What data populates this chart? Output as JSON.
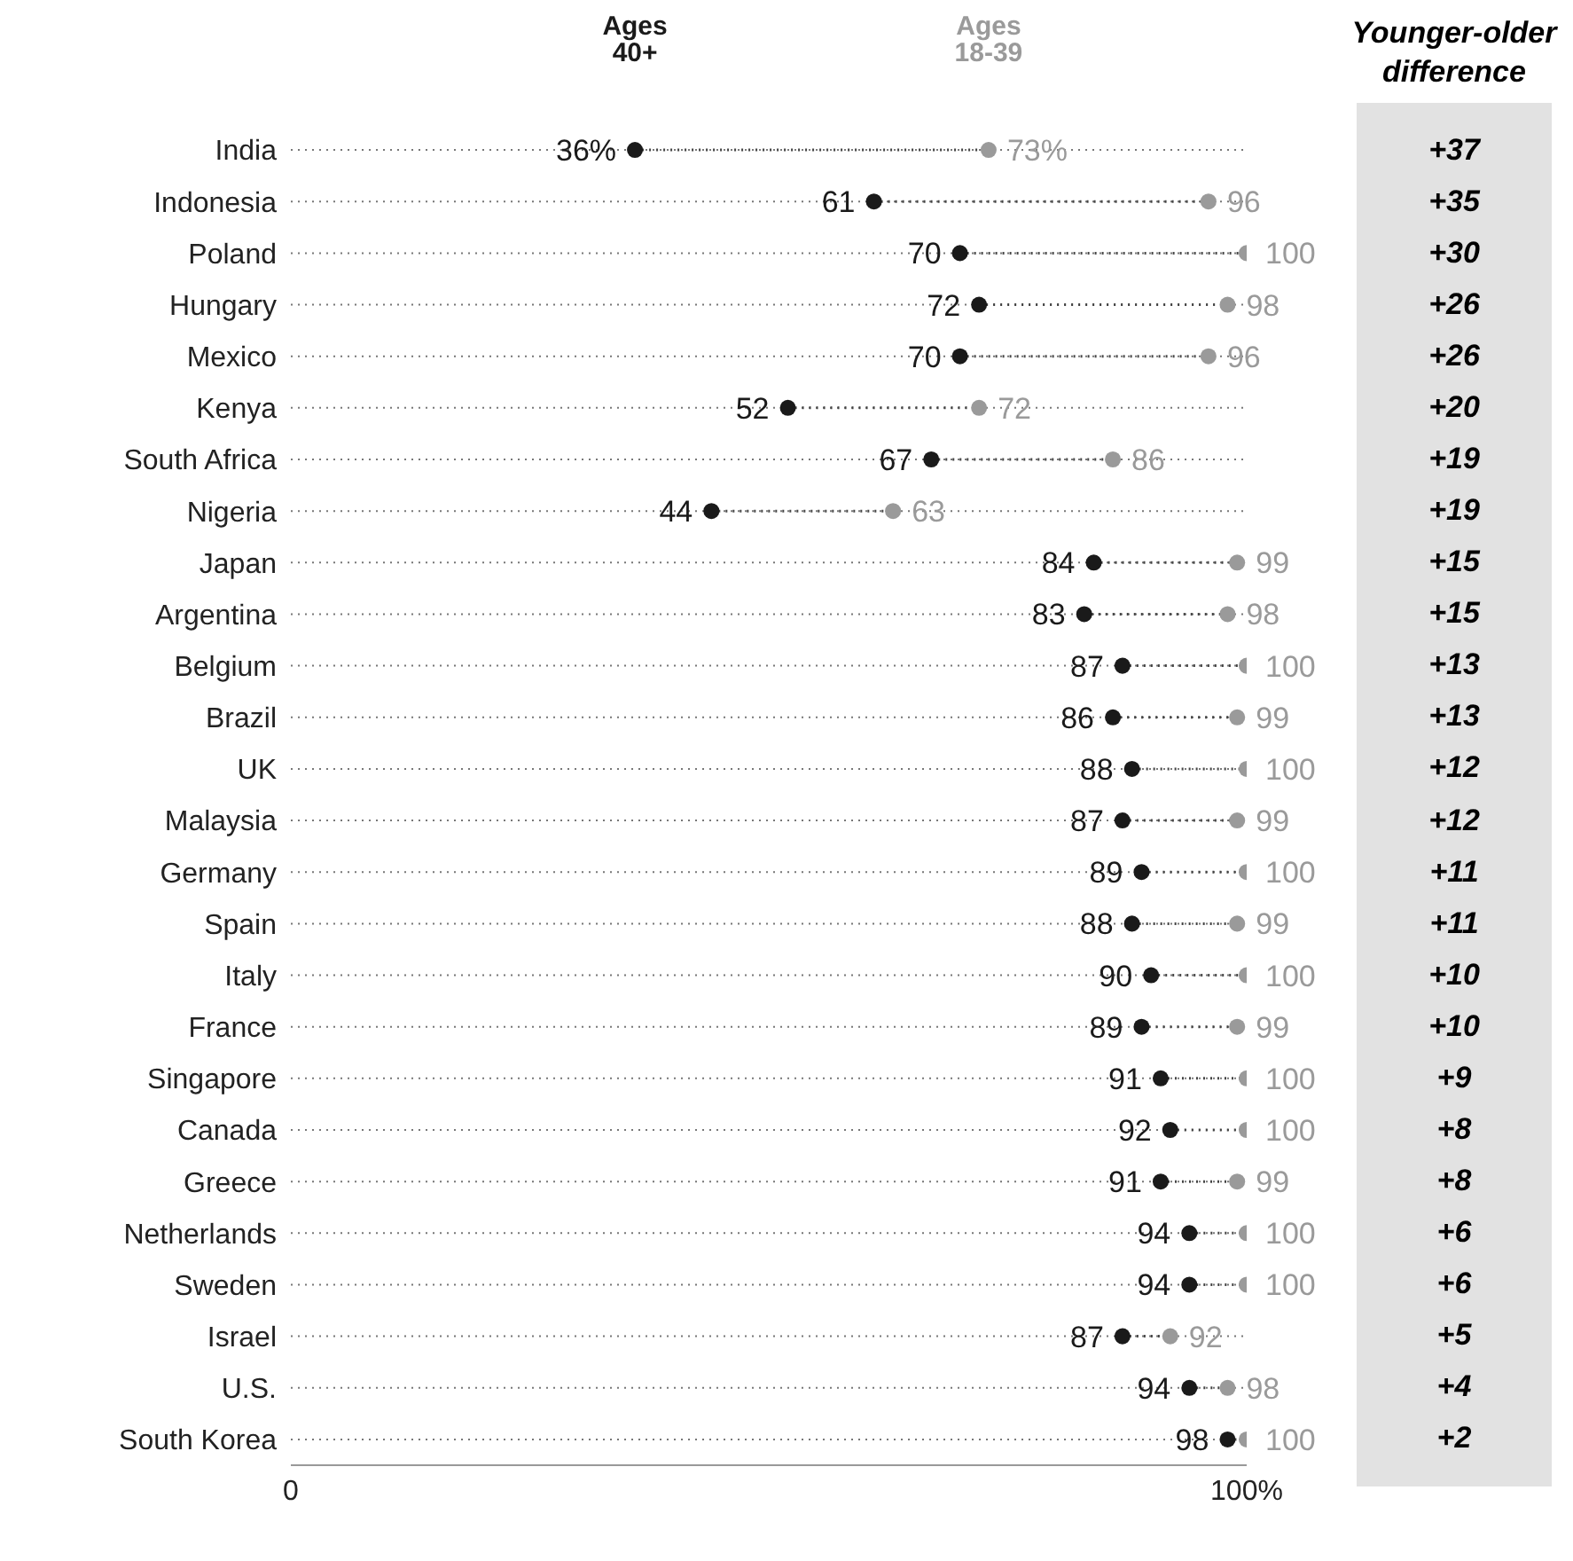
{
  "chart_data": {
    "type": "scatter",
    "categories": [
      "India",
      "Indonesia",
      "Poland",
      "Hungary",
      "Mexico",
      "Kenya",
      "South Africa",
      "Nigeria",
      "Japan",
      "Argentina",
      "Belgium",
      "Brazil",
      "UK",
      "Malaysia",
      "Germany",
      "Spain",
      "Italy",
      "France",
      "Singapore",
      "Canada",
      "Greece",
      "Netherlands",
      "Sweden",
      "Israel",
      "U.S.",
      "South Korea"
    ],
    "series": [
      {
        "name": "Ages 40+",
        "color": "#1a1a1a",
        "values": [
          36,
          61,
          70,
          72,
          70,
          52,
          67,
          44,
          84,
          83,
          87,
          86,
          88,
          87,
          89,
          88,
          90,
          89,
          91,
          92,
          91,
          94,
          94,
          87,
          94,
          98
        ],
        "value_labels": [
          "36%",
          "61",
          "70",
          "72",
          "70",
          "52",
          "67",
          "44",
          "84",
          "83",
          "87",
          "86",
          "88",
          "87",
          "89",
          "88",
          "90",
          "89",
          "91",
          "92",
          "91",
          "94",
          "94",
          "87",
          "94",
          "98"
        ]
      },
      {
        "name": "Ages 18-39",
        "color": "#9a9a9a",
        "values": [
          73,
          96,
          100,
          98,
          96,
          72,
          86,
          63,
          99,
          98,
          100,
          99,
          100,
          99,
          100,
          99,
          100,
          99,
          100,
          100,
          99,
          100,
          100,
          92,
          98,
          100
        ],
        "value_labels": [
          "73%",
          "96",
          "100",
          "98",
          "96",
          "72",
          "86",
          "63",
          "99",
          "98",
          "100",
          "99",
          "100",
          "99",
          "100",
          "99",
          "100",
          "99",
          "100",
          "100",
          "99",
          "100",
          "100",
          "92",
          "98",
          "100"
        ]
      }
    ],
    "xlim": [
      0,
      100
    ],
    "orientation": "horizontal",
    "xticks": [
      {
        "value": 0,
        "label": "0"
      },
      {
        "value": 100,
        "label": "100%"
      }
    ],
    "grid": "y",
    "marker": "circle",
    "line_style": "dotted",
    "annotations": [
      "Younger-older difference",
      "+37",
      "+35",
      "+30",
      "+26",
      "+26",
      "+20",
      "+19",
      "+19",
      "+15",
      "+15",
      "+13",
      "+13",
      "+12",
      "+12",
      "+11",
      "+11",
      "+10",
      "+10",
      "+9",
      "+8",
      "+8",
      "+6",
      "+6",
      "+5",
      "+4",
      "+2"
    ]
  }
}
